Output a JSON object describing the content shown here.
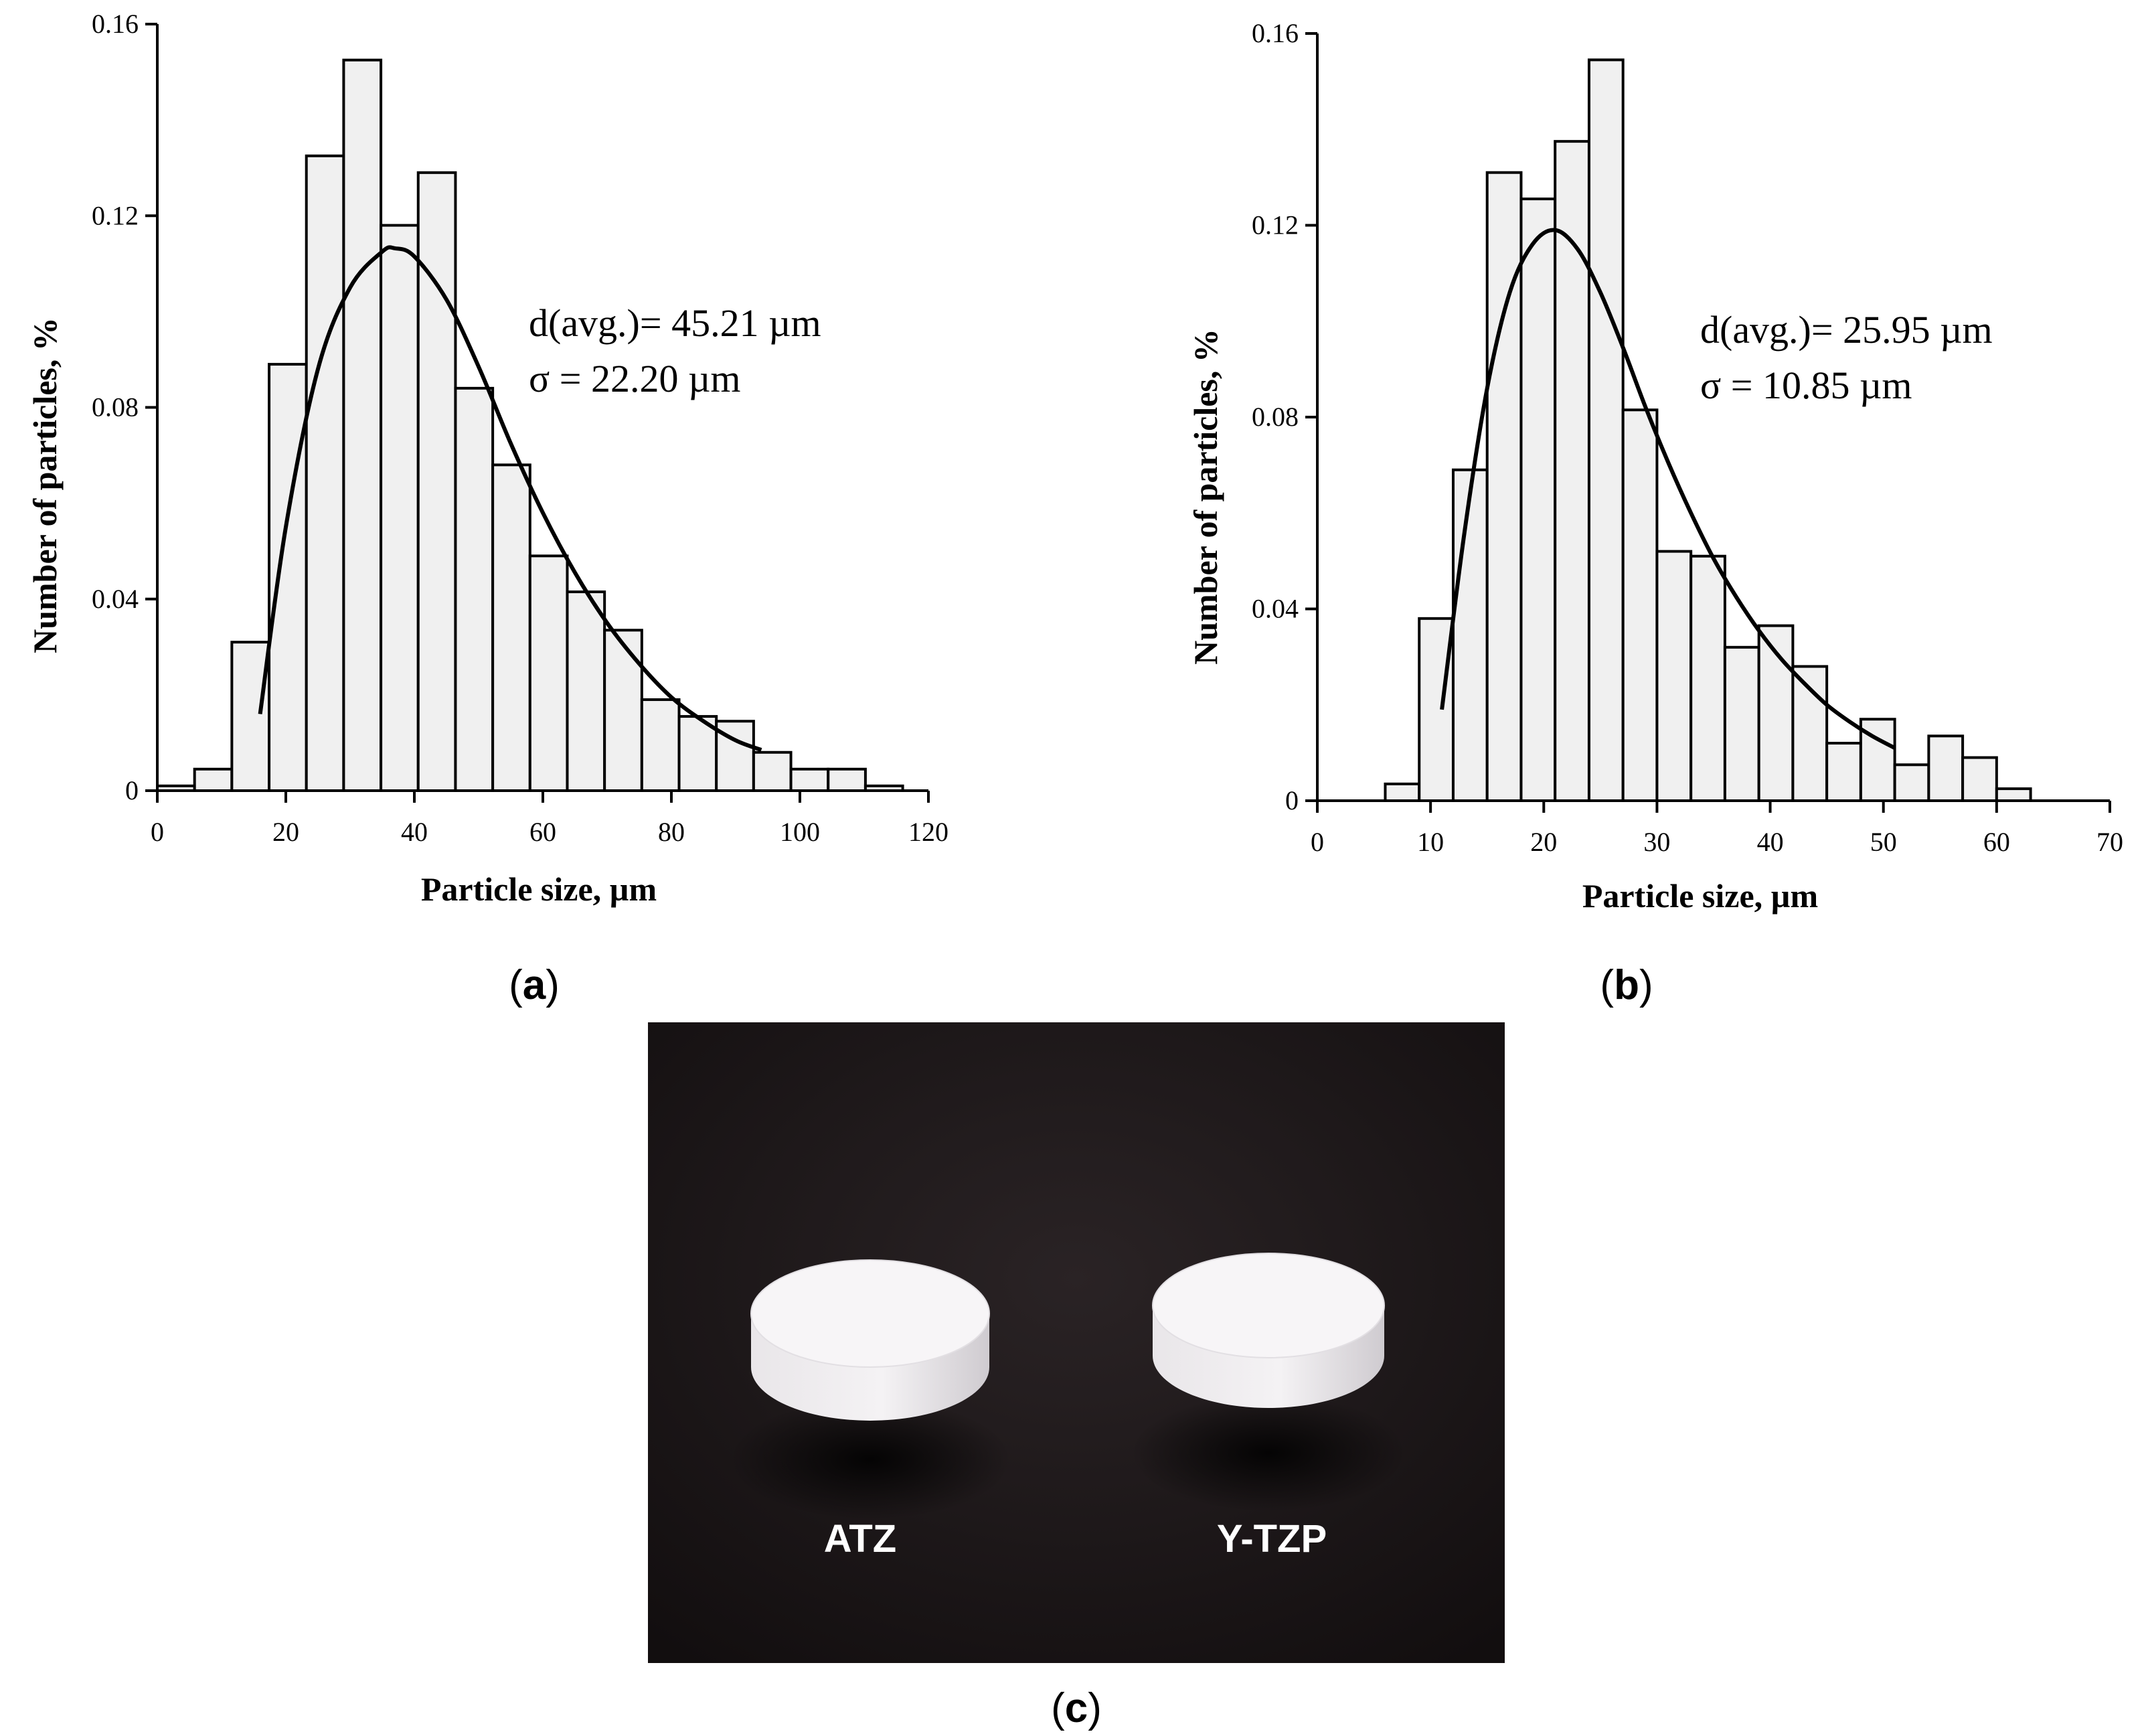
{
  "chart_data": [
    {
      "type": "bar",
      "panel_label": "a",
      "xlabel": "Particle size, µm",
      "ylabel": "Number of particles, %",
      "xlim": [
        0,
        120
      ],
      "ylim": [
        0,
        0.16
      ],
      "x_ticks": [
        "0",
        "20",
        "40",
        "60",
        "80",
        "100",
        "120"
      ],
      "y_ticks": [
        "0",
        "0.04",
        "0.08",
        "0.12",
        "0.16"
      ],
      "x_tick_values": [
        0,
        20,
        40,
        60,
        80,
        100,
        120
      ],
      "y_tick_values": [
        0,
        0.04,
        0.08,
        0.12,
        0.16
      ],
      "bin_width": 5.8,
      "bin_starts": [
        0,
        5.8,
        11.6,
        17.4,
        23.2,
        29.0,
        34.8,
        40.6,
        46.4,
        52.2,
        58.0,
        63.8,
        69.6,
        75.4,
        81.2,
        87.0,
        92.8,
        98.6,
        104.4,
        110.2
      ],
      "values": [
        0.001,
        0.0045,
        0.031,
        0.089,
        0.1325,
        0.1525,
        0.118,
        0.129,
        0.084,
        0.068,
        0.049,
        0.0415,
        0.0335,
        0.019,
        0.0155,
        0.0145,
        0.008,
        0.0045,
        0.0045,
        0.001
      ],
      "fit_x": [
        16,
        20,
        25,
        30,
        35,
        37,
        40,
        45,
        50,
        55,
        60,
        65,
        70,
        75,
        80,
        85,
        90,
        94
      ],
      "fit_y": [
        0.016,
        0.055,
        0.088,
        0.105,
        0.1125,
        0.1132,
        0.1115,
        0.1025,
        0.0885,
        0.0725,
        0.058,
        0.0455,
        0.035,
        0.0265,
        0.0195,
        0.0145,
        0.0105,
        0.0085
      ],
      "annotations": [
        "d(avg.)= 45.21 µm",
        "σ = 22.20 µm"
      ]
    },
    {
      "type": "bar",
      "panel_label": "b",
      "xlabel": "Particle size, µm",
      "ylabel": "Number of particles, %",
      "xlim": [
        0,
        70
      ],
      "ylim": [
        0,
        0.16
      ],
      "x_ticks": [
        "0",
        "10",
        "20",
        "30",
        "40",
        "50",
        "60",
        "70"
      ],
      "y_ticks": [
        "0",
        "0.04",
        "0.08",
        "0.12",
        "0.16"
      ],
      "x_tick_values": [
        0,
        10,
        20,
        30,
        40,
        50,
        60,
        70
      ],
      "y_tick_values": [
        0,
        0.04,
        0.08,
        0.12,
        0.16
      ],
      "bin_width": 3.0,
      "bin_starts": [
        6.0,
        9.0,
        12.0,
        15.0,
        18.0,
        21.0,
        24.0,
        27.0,
        30.0,
        33.0,
        36.0,
        39.0,
        42.0,
        45.0,
        48.0,
        51.0,
        54.0,
        57.0,
        60.0
      ],
      "values": [
        0.0035,
        0.038,
        0.069,
        0.131,
        0.1255,
        0.1375,
        0.1545,
        0.0815,
        0.052,
        0.051,
        0.032,
        0.0365,
        0.028,
        0.012,
        0.017,
        0.0075,
        0.0135,
        0.009,
        0.0025
      ],
      "fit_x": [
        11,
        13,
        15,
        17,
        19,
        21,
        23,
        25,
        27,
        29,
        31,
        33,
        35,
        37,
        39,
        41,
        43,
        45,
        47,
        49,
        51
      ],
      "fit_y": [
        0.019,
        0.056,
        0.086,
        0.106,
        0.116,
        0.119,
        0.115,
        0.106,
        0.0945,
        0.082,
        0.0705,
        0.06,
        0.0505,
        0.0425,
        0.0355,
        0.0295,
        0.0245,
        0.02,
        0.0165,
        0.0135,
        0.011
      ],
      "annotations": [
        "d(avg.)= 25.95 µm",
        "σ = 10.85 µm"
      ]
    }
  ],
  "captions": {
    "a": "a",
    "b": "b",
    "c": "c"
  },
  "photo": {
    "labels": [
      "ATZ",
      "Y-TZP"
    ],
    "background_color": "#1a1416"
  }
}
